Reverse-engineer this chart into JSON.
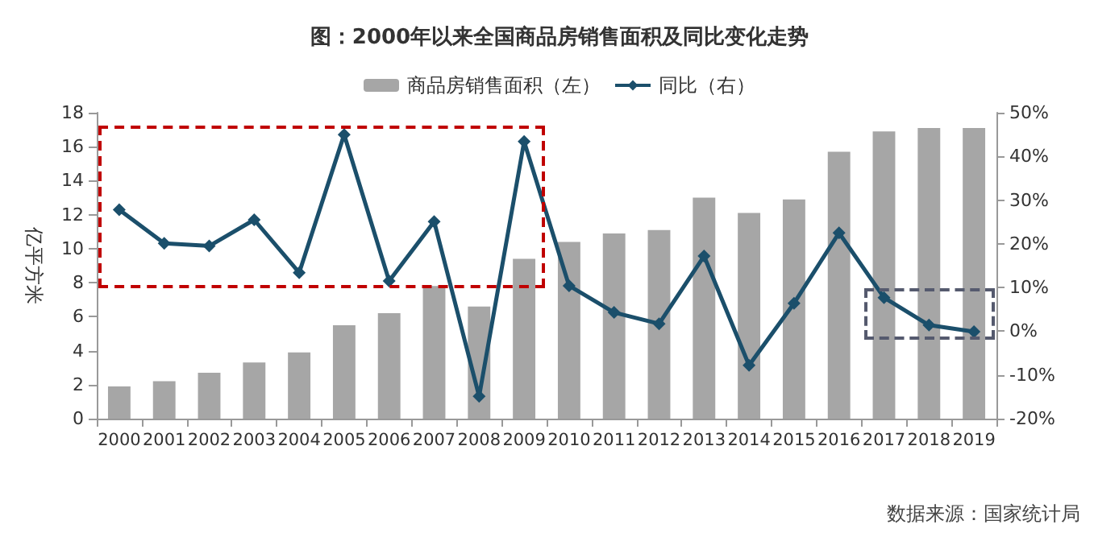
{
  "chart_data": {
    "type": "bar",
    "title": "图：2000年以来全国商品房销售面积及同比变化走势",
    "ylabel": "亿平方米",
    "categories": [
      "2000",
      "2001",
      "2002",
      "2003",
      "2004",
      "2005",
      "2006",
      "2007",
      "2008",
      "2009",
      "2010",
      "2011",
      "2012",
      "2013",
      "2014",
      "2015",
      "2016",
      "2017",
      "2018",
      "2019"
    ],
    "series": [
      {
        "name": "商品房销售面积（左）",
        "color": "#a6a6a6",
        "values": [
          1.9,
          2.2,
          2.7,
          3.3,
          3.9,
          5.5,
          6.2,
          7.8,
          6.6,
          9.4,
          10.4,
          10.9,
          11.1,
          13.0,
          12.1,
          12.9,
          15.7,
          16.9,
          17.1,
          17.1
        ]
      },
      {
        "name": "同比（右）",
        "type": "line",
        "axis": "y2",
        "color": "#1b4f6b",
        "marker": "diamond",
        "values": [
          27.8,
          20.1,
          19.5,
          25.5,
          13.4,
          45,
          11.5,
          25.1,
          -14.9,
          43.4,
          10.4,
          4.3,
          1.7,
          17.2,
          -7.8,
          6.4,
          22.5,
          7.7,
          1.4,
          -0.1
        ]
      }
    ],
    "ylim": [
      0,
      18
    ],
    "yticks": [
      0,
      2,
      4,
      6,
      8,
      10,
      12,
      14,
      16,
      18
    ],
    "y2lim": [
      -20,
      50
    ],
    "y2ticks": [
      {
        "value": -20,
        "label": "-20%"
      },
      {
        "value": -10,
        "label": "-10%"
      },
      {
        "value": 0,
        "label": "0%"
      },
      {
        "value": 10,
        "label": "10%"
      },
      {
        "value": 20,
        "label": "20%"
      },
      {
        "value": 30,
        "label": "30%"
      },
      {
        "value": 40,
        "label": "40%"
      },
      {
        "value": 50,
        "label": "50%"
      }
    ],
    "grid": false,
    "legend": "top",
    "annotations": [
      "数据来源：国家统计局"
    ]
  }
}
